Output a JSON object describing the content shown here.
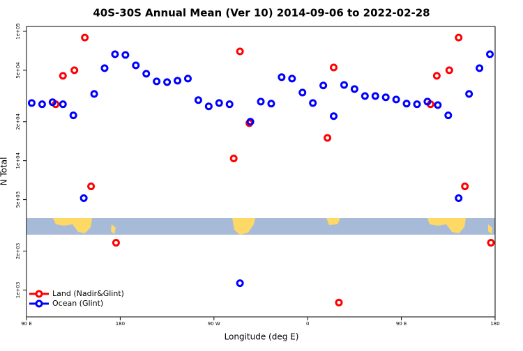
{
  "chart_data": {
    "type": "scatter",
    "title": "40S-30S Annual Mean (Ver 10)   2014-09-06 to 2022-02-28",
    "xlabel": "Longitude (deg E)",
    "ylabel": "N Total",
    "yscale": "log",
    "legend": "lower left",
    "xlim": [
      90,
      540
    ],
    "ylim": [
      620,
      109000
    ],
    "xticks": [
      {
        "value": 90,
        "label": "90 E"
      },
      {
        "value": 180,
        "label": "180"
      },
      {
        "value": 270,
        "label": "90 W"
      },
      {
        "value": 360,
        "label": "0"
      },
      {
        "value": 450,
        "label": "90 E"
      },
      {
        "value": 540,
        "label": "180"
      }
    ],
    "yticks": [
      {
        "value": 1000,
        "label": "1e+03"
      },
      {
        "value": 2000,
        "label": "2e+03"
      },
      {
        "value": 5000,
        "label": "5e+03"
      },
      {
        "value": 10000,
        "label": "1e+04"
      },
      {
        "value": 20000,
        "label": "2e+04"
      },
      {
        "value": 50000,
        "label": "5e+04"
      },
      {
        "value": 100000,
        "label": "1e+05"
      }
    ],
    "series": [
      {
        "name": "Land (Nadir&Glint)",
        "color": "#ff0000",
        "x": [
          118,
          125,
          136,
          146,
          152,
          176,
          289,
          295,
          304,
          379,
          385,
          390,
          478,
          484,
          496,
          505,
          511,
          536
        ],
        "values": [
          27300,
          45300,
          50000,
          89400,
          6330,
          2320,
          10400,
          69900,
          19500,
          15000,
          52500,
          800,
          27300,
          45300,
          50000,
          89400,
          6330,
          2320
        ]
      },
      {
        "name": "Ocean (Glint)",
        "color": "#0000ff",
        "x": [
          95,
          105,
          115,
          125,
          135,
          145,
          155,
          165,
          175,
          185,
          195,
          205,
          215,
          225,
          235,
          245,
          255,
          265,
          275,
          285,
          295,
          305,
          315,
          325,
          335,
          345,
          355,
          365,
          375,
          385,
          395,
          405,
          415,
          425,
          435,
          445,
          455,
          465,
          475,
          485,
          495,
          505,
          515,
          525,
          535
        ],
        "values": [
          27900,
          27300,
          28300,
          27300,
          22400,
          5130,
          32800,
          51900,
          66500,
          65700,
          54500,
          47000,
          41000,
          40500,
          41500,
          43100,
          29400,
          26300,
          27900,
          27300,
          1130,
          20000,
          28600,
          27600,
          44200,
          43100,
          33600,
          27900,
          38100,
          22100,
          38500,
          35800,
          31600,
          31600,
          30900,
          29700,
          27600,
          27300,
          28600,
          26900,
          22400,
          5130,
          32800,
          51900,
          66500
        ]
      }
    ]
  }
}
